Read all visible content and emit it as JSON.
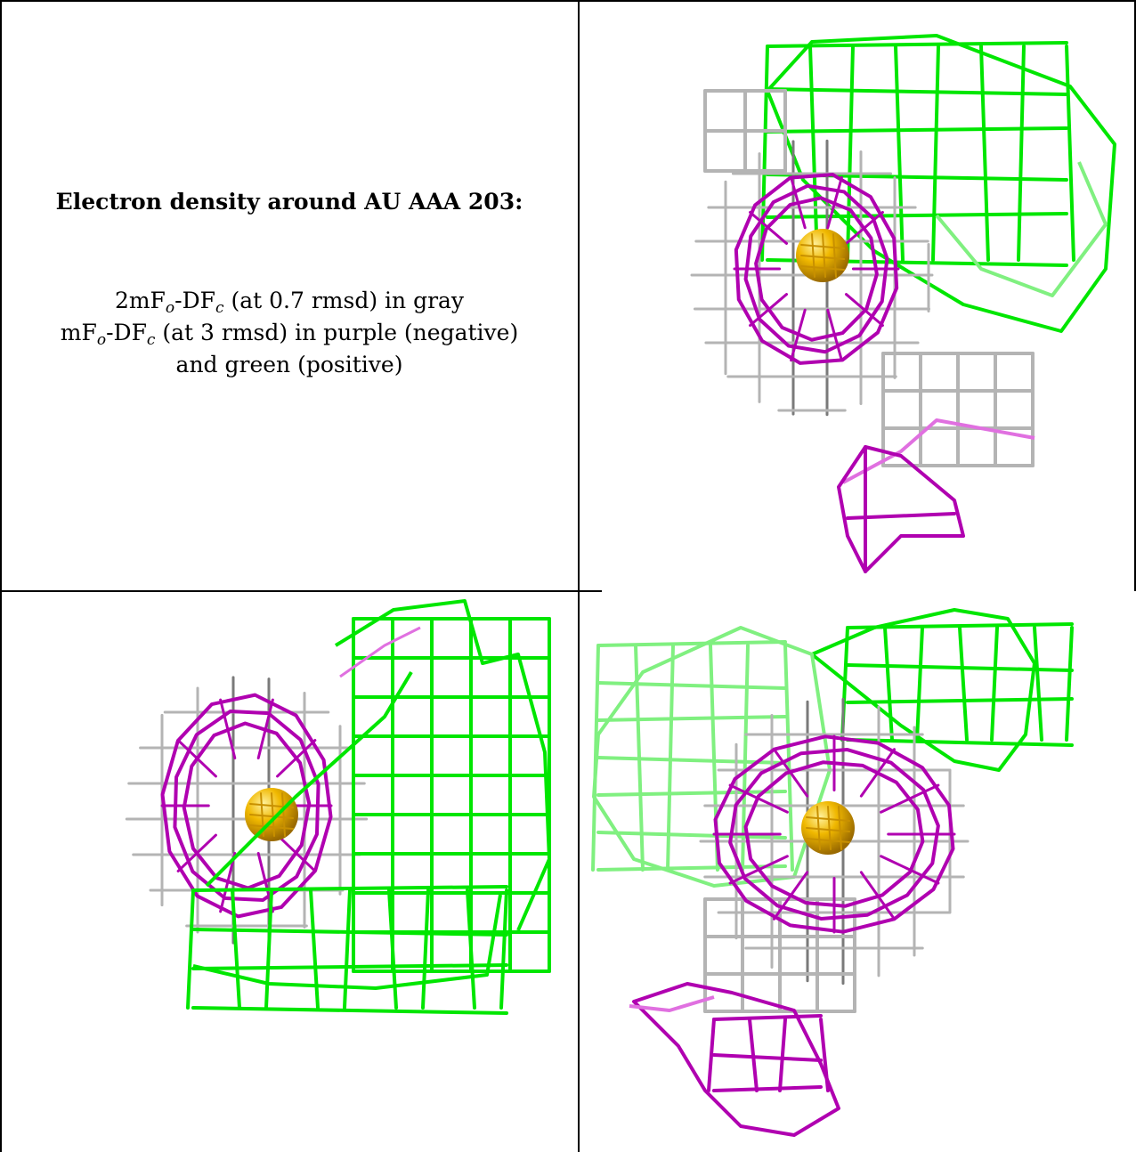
{
  "caption": {
    "title": "Electron density around AU AAA 203:",
    "line1": {
      "pre": "2mF",
      "sub1": "o",
      "mid": "-DF",
      "sub2": "c",
      "post": " (at 0.7 rmsd) in gray"
    },
    "line2": {
      "pre": "mF",
      "sub1": "o",
      "mid": "-DF",
      "sub2": "c",
      "post": " (at 3 rmsd) in purple (negative)"
    },
    "line3": "and green (positive)"
  },
  "colors": {
    "mesh_2fofc": "#b4b4b4",
    "mesh_2fofc_dark": "#7a7a7a",
    "mesh_negative": "#b000b0",
    "mesh_negative_light": "#e070e0",
    "mesh_positive": "#00e600",
    "mesh_positive_light": "#80f080",
    "atom": "#f0b800"
  },
  "panels": [
    {
      "name": "view-1"
    },
    {
      "name": "view-2"
    },
    {
      "name": "view-3"
    }
  ]
}
